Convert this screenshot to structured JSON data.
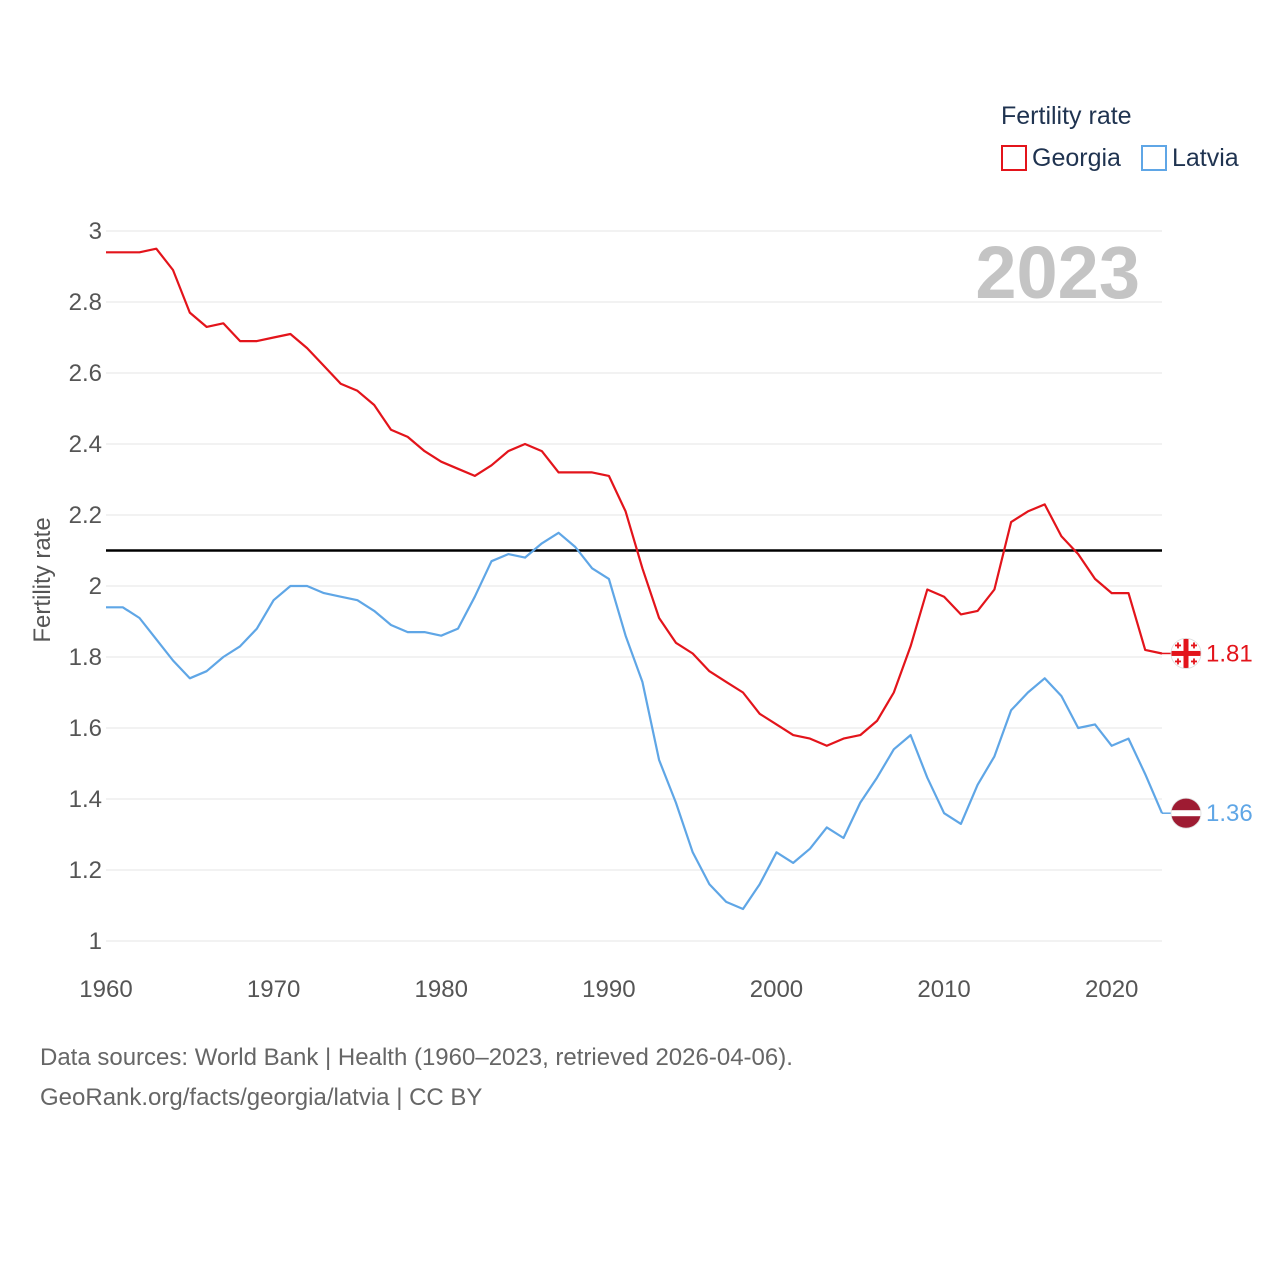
{
  "chart_data": {
    "type": "line",
    "ylabel": "Fertility rate",
    "xlabel": "",
    "ylim": [
      1,
      3
    ],
    "xlim": [
      1960,
      2023
    ],
    "y_ticks": [
      1,
      1.2,
      1.4,
      1.6,
      1.8,
      2,
      2.2,
      2.4,
      2.6,
      2.8,
      3
    ],
    "y_tick_labels": [
      "1",
      "1.2",
      "1.4",
      "1.6",
      "1.8",
      "2",
      "2.2",
      "2.4",
      "2.6",
      "2.8",
      "3"
    ],
    "x_ticks": [
      1960,
      1970,
      1980,
      1990,
      2000,
      2010,
      2020
    ],
    "x_tick_labels": [
      "1960",
      "1970",
      "1980",
      "1990",
      "2000",
      "2010",
      "2020"
    ],
    "grid": true,
    "reference_line": {
      "y": 2.1,
      "color": "#000000"
    },
    "year_label": "2023",
    "legend": {
      "title": "Fertility rate",
      "placement": "top-right"
    },
    "x": [
      1960,
      1961,
      1962,
      1963,
      1964,
      1965,
      1966,
      1967,
      1968,
      1969,
      1970,
      1971,
      1972,
      1973,
      1974,
      1975,
      1976,
      1977,
      1978,
      1979,
      1980,
      1981,
      1982,
      1983,
      1984,
      1985,
      1986,
      1987,
      1988,
      1989,
      1990,
      1991,
      1992,
      1993,
      1994,
      1995,
      1996,
      1997,
      1998,
      1999,
      2000,
      2001,
      2002,
      2003,
      2004,
      2005,
      2006,
      2007,
      2008,
      2009,
      2010,
      2011,
      2012,
      2013,
      2014,
      2015,
      2016,
      2017,
      2018,
      2019,
      2020,
      2021,
      2022,
      2023
    ],
    "series": [
      {
        "name": "Georgia",
        "color": "#e3141b",
        "flag": "georgia-flag",
        "end_label": "1.81",
        "values": [
          2.94,
          2.94,
          2.94,
          2.95,
          2.89,
          2.77,
          2.73,
          2.74,
          2.69,
          2.69,
          2.7,
          2.71,
          2.67,
          2.62,
          2.57,
          2.55,
          2.51,
          2.44,
          2.42,
          2.38,
          2.35,
          2.33,
          2.31,
          2.34,
          2.38,
          2.4,
          2.38,
          2.32,
          2.32,
          2.32,
          2.31,
          2.21,
          2.05,
          1.91,
          1.84,
          1.81,
          1.76,
          1.73,
          1.7,
          1.64,
          1.61,
          1.58,
          1.57,
          1.55,
          1.57,
          1.58,
          1.62,
          1.7,
          1.83,
          1.99,
          1.97,
          1.92,
          1.93,
          1.99,
          2.18,
          2.21,
          2.23,
          2.14,
          2.09,
          2.02,
          1.98,
          1.98,
          1.82,
          1.81
        ]
      },
      {
        "name": "Latvia",
        "color": "#5fa6e6",
        "flag": "latvia-flag",
        "end_label": "1.36",
        "values": [
          1.94,
          1.94,
          1.91,
          1.85,
          1.79,
          1.74,
          1.76,
          1.8,
          1.83,
          1.88,
          1.96,
          2.0,
          2.0,
          1.98,
          1.97,
          1.96,
          1.93,
          1.89,
          1.87,
          1.87,
          1.86,
          1.88,
          1.97,
          2.07,
          2.09,
          2.08,
          2.12,
          2.15,
          2.11,
          2.05,
          2.02,
          1.86,
          1.73,
          1.51,
          1.39,
          1.25,
          1.16,
          1.11,
          1.09,
          1.16,
          1.25,
          1.22,
          1.26,
          1.32,
          1.29,
          1.39,
          1.46,
          1.54,
          1.58,
          1.46,
          1.36,
          1.33,
          1.44,
          1.52,
          1.65,
          1.7,
          1.74,
          1.69,
          1.6,
          1.61,
          1.55,
          1.57,
          1.47,
          1.36
        ]
      }
    ]
  },
  "footer": {
    "line1": "Data sources: World Bank | Health (1960–2023, retrieved 2026-04-06).",
    "line2": "GeoRank.org/facts/georgia/latvia | CC BY"
  }
}
